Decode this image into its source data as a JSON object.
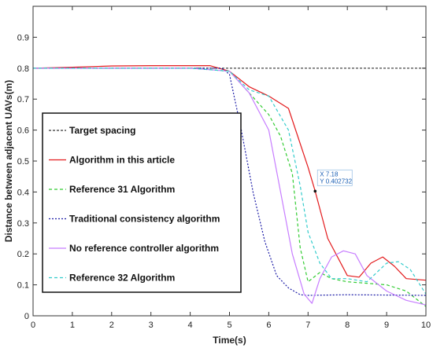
{
  "chart_data": {
    "type": "line",
    "xlabel": "Time(s)",
    "ylabel": "Distance between adjacent UAVs(m)",
    "xlim": [
      0,
      10
    ],
    "ylim": [
      0,
      1
    ],
    "xticks": [
      0,
      1,
      2,
      3,
      4,
      5,
      6,
      7,
      8,
      9,
      10
    ],
    "yticks": [
      0,
      0.1,
      0.2,
      0.3,
      0.4,
      0.5,
      0.6,
      0.7,
      0.8,
      0.9
    ],
    "ytick_labels": [
      "0",
      "0.1",
      "0.2",
      "0.3",
      "0.4",
      "0.5",
      "0.6",
      "0.7",
      "0.8",
      "0.9"
    ],
    "grid": false,
    "legend_position": "left",
    "series": [
      {
        "name": "Target spacing",
        "color": "#333333",
        "dash": "3,2",
        "x": [
          0,
          10
        ],
        "y": [
          0.8,
          0.8
        ]
      },
      {
        "name": "Algorithm in this article",
        "color": "#e31a1c",
        "dash": "",
        "x": [
          0,
          1,
          2,
          3,
          4,
          4.5,
          5,
          5.5,
          6,
          6.5,
          7,
          7.18,
          7.5,
          8,
          8.3,
          8.6,
          8.9,
          9.2,
          9.5,
          10
        ],
        "y": [
          0.8,
          0.803,
          0.807,
          0.808,
          0.808,
          0.808,
          0.79,
          0.74,
          0.71,
          0.67,
          0.48,
          0.402732,
          0.25,
          0.13,
          0.125,
          0.17,
          0.19,
          0.16,
          0.12,
          0.115
        ]
      },
      {
        "name": "Reference 31 Algorithm",
        "color": "#33cc33",
        "dash": "4,3",
        "x": [
          0,
          4,
          5,
          5.5,
          6,
          6.3,
          6.6,
          6.8,
          7.0,
          7.3,
          7.6,
          8,
          8.5,
          9,
          9.5,
          10
        ],
        "y": [
          0.8,
          0.8,
          0.79,
          0.72,
          0.65,
          0.58,
          0.46,
          0.22,
          0.11,
          0.14,
          0.12,
          0.11,
          0.105,
          0.1,
          0.08,
          0.03
        ]
      },
      {
        "name": "Traditional consistency algorithm",
        "color": "#1a1aa6",
        "dash": "2,2",
        "x": [
          0,
          4,
          4.8,
          5.0,
          5.3,
          5.6,
          5.9,
          6.2,
          6.5,
          6.8,
          7.0,
          7.5,
          8,
          9,
          10
        ],
        "y": [
          0.8,
          0.8,
          0.8,
          0.78,
          0.6,
          0.4,
          0.24,
          0.13,
          0.09,
          0.068,
          0.066,
          0.067,
          0.068,
          0.067,
          0.066
        ]
      },
      {
        "name": "No reference controller algorithm",
        "color": "#c77dff",
        "dash": "",
        "x": [
          0,
          4,
          5,
          5.5,
          6,
          6.3,
          6.6,
          6.9,
          7.1,
          7.3,
          7.6,
          7.9,
          8.2,
          8.5,
          9,
          9.5,
          10
        ],
        "y": [
          0.8,
          0.8,
          0.79,
          0.72,
          0.6,
          0.4,
          0.2,
          0.07,
          0.04,
          0.12,
          0.19,
          0.21,
          0.2,
          0.13,
          0.08,
          0.05,
          0.035
        ]
      },
      {
        "name": "Reference 32 Algorithm",
        "color": "#33cccc",
        "dash": "4,3",
        "x": [
          0,
          4,
          5,
          5.5,
          6,
          6.5,
          6.8,
          7.0,
          7.3,
          7.6,
          8,
          8.5,
          9,
          9.3,
          9.6,
          10
        ],
        "y": [
          0.8,
          0.8,
          0.79,
          0.73,
          0.71,
          0.6,
          0.42,
          0.27,
          0.17,
          0.12,
          0.12,
          0.11,
          0.17,
          0.175,
          0.15,
          0.07
        ]
      }
    ],
    "annotations": [
      {
        "series": "Algorithm in this article",
        "x_label": "X 7.18",
        "y_label": "Y 0.402732",
        "x": 7.18,
        "y": 0.402732
      }
    ]
  }
}
